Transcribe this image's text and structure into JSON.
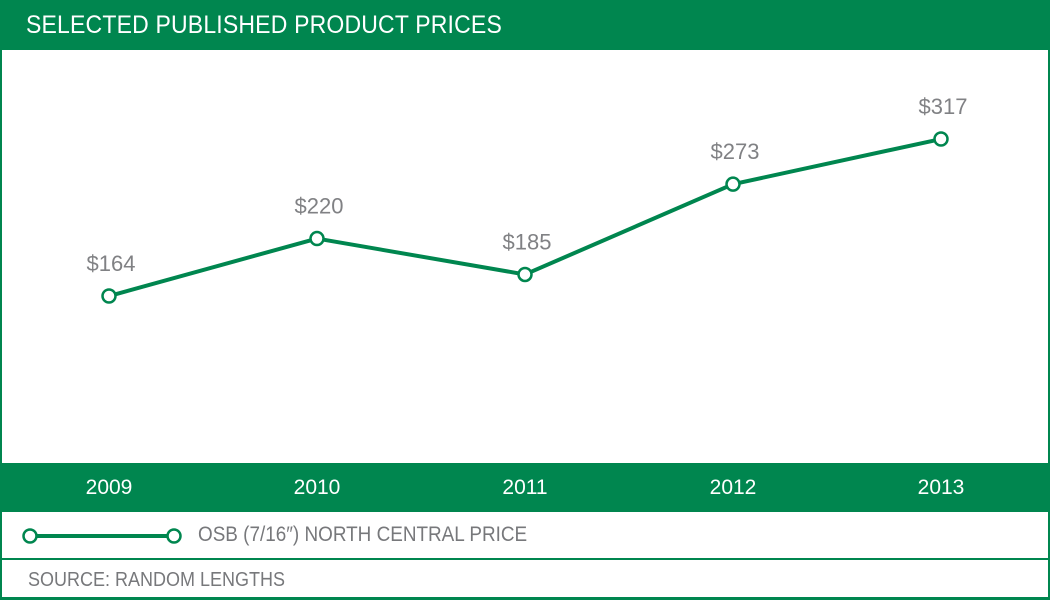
{
  "title": "SELECTED PUBLISHED PRODUCT PRICES",
  "colors": {
    "brand_green": "#00864f",
    "label_gray": "#808184",
    "text_gray": "#77787b",
    "marker_fill": "#ffffff"
  },
  "chart_data": {
    "type": "line",
    "title": "SELECTED PUBLISHED PRODUCT PRICES",
    "xlabel": "",
    "ylabel": "",
    "categories": [
      "2009",
      "2010",
      "2011",
      "2012",
      "2013"
    ],
    "series": [
      {
        "name": "OSB (7/16″) NORTH CENTRAL PRICE",
        "values": [
          164,
          220,
          185,
          273,
          317
        ],
        "labels": [
          "$164",
          "$220",
          "$185",
          "$273",
          "$317"
        ],
        "marker": "open-circle"
      }
    ],
    "ylim": [
      0,
      402
    ],
    "grid": false,
    "legend_position": "bottom-left",
    "data_labels": true
  },
  "legend": {
    "label": "OSB (7/16″) NORTH CENTRAL PRICE"
  },
  "source": "SOURCE: RANDOM LENGTHS"
}
